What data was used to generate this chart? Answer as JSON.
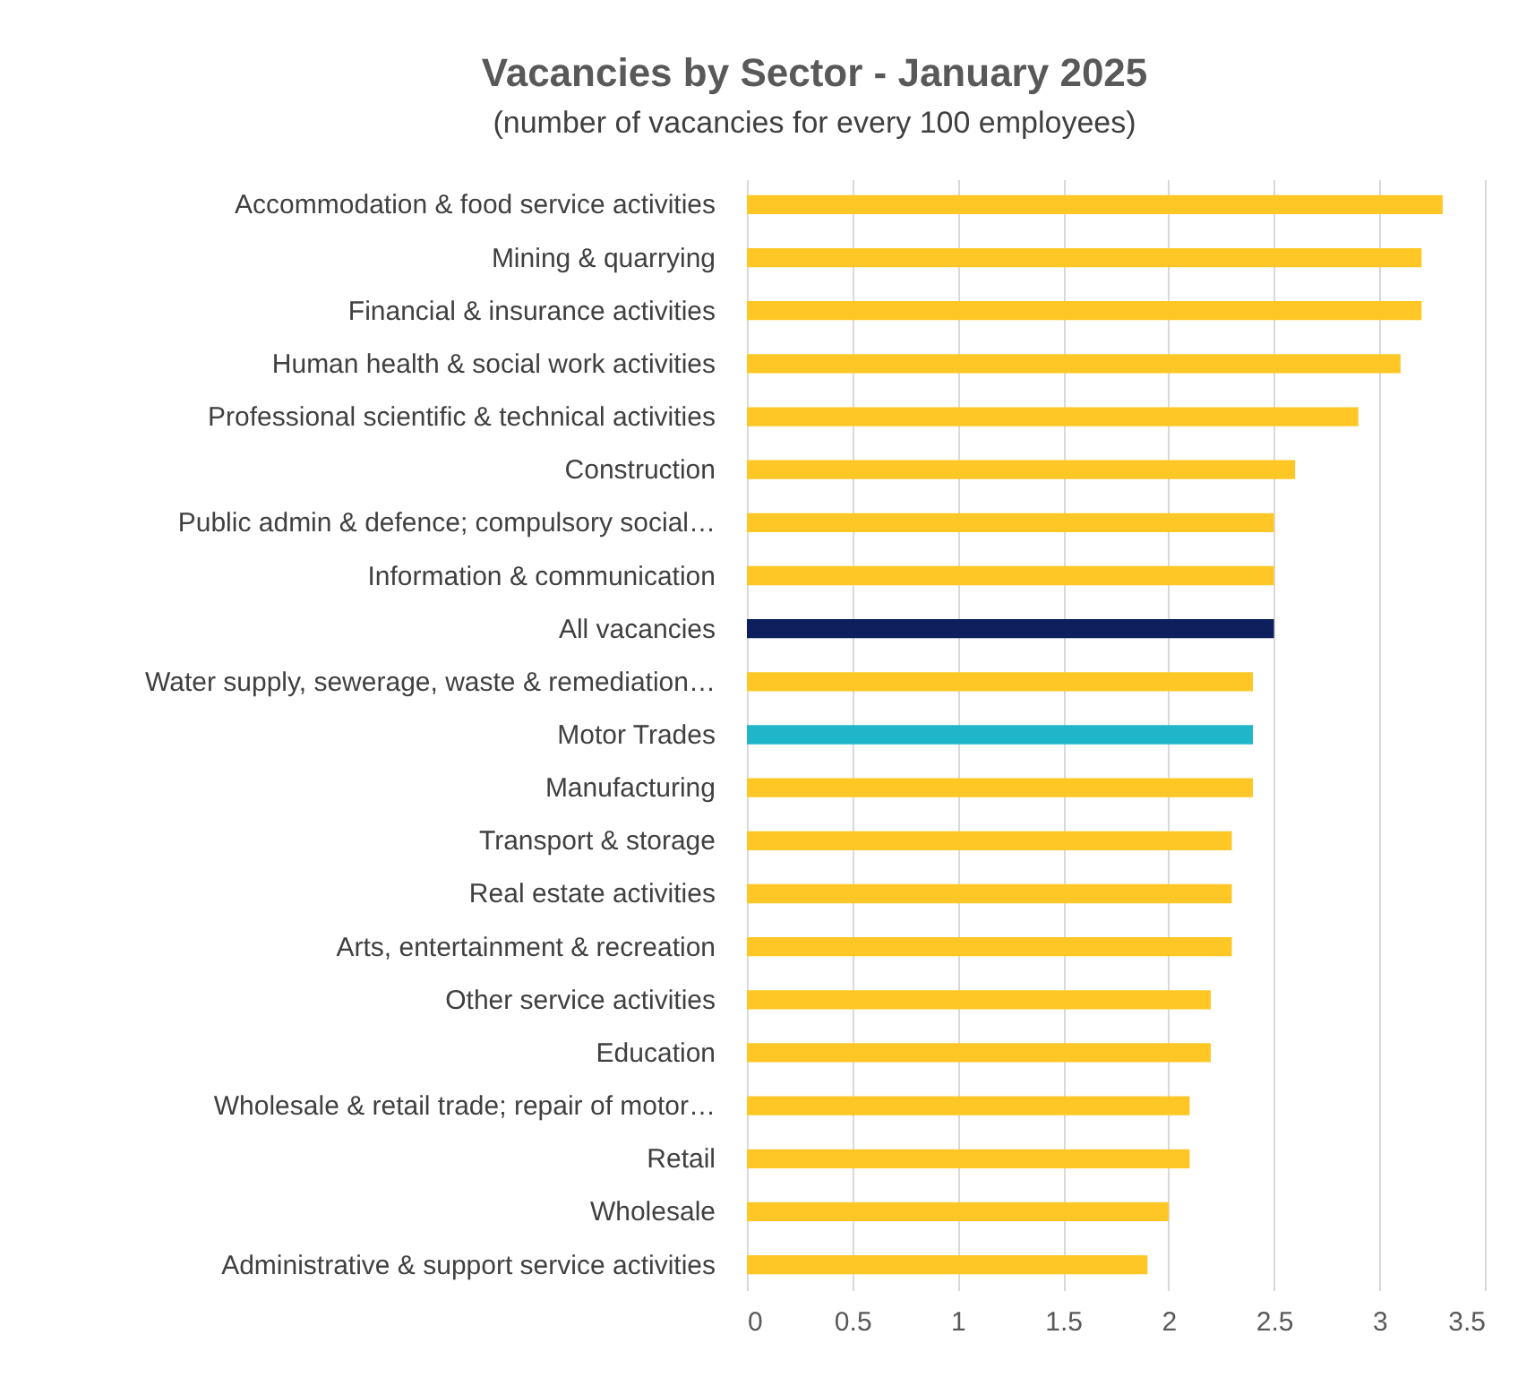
{
  "chart_data": {
    "type": "bar",
    "orientation": "horizontal",
    "title": "Vacancies by Sector  - January 2025",
    "subtitle": "(number of vacancies for every 100 employees)",
    "categories": [
      "Accommodation & food service activities",
      "Mining & quarrying",
      "Financial & insurance activities",
      "Human health & social work activities",
      "Professional scientific & technical activities",
      "Construction",
      "Public admin & defence; compulsory social…",
      "Information & communication",
      "All vacancies",
      "Water supply, sewerage, waste & remediation…",
      "Motor Trades",
      "Manufacturing",
      "Transport & storage",
      "Real estate activities",
      "Arts, entertainment & recreation",
      "Other service activities",
      "Education",
      "Wholesale & retail trade; repair of motor…",
      "Retail",
      "Wholesale",
      "Administrative & support service activities"
    ],
    "values": [
      3.3,
      3.2,
      3.2,
      3.1,
      2.9,
      2.6,
      2.5,
      2.5,
      2.5,
      2.4,
      2.4,
      2.4,
      2.3,
      2.3,
      2.3,
      2.2,
      2.2,
      2.1,
      2.1,
      2.0,
      1.9
    ],
    "colors": [
      "#ffc726",
      "#ffc726",
      "#ffc726",
      "#ffc726",
      "#ffc726",
      "#ffc726",
      "#ffc726",
      "#ffc726",
      "#0d1f5c",
      "#ffc726",
      "#1fb6c9",
      "#ffc726",
      "#ffc726",
      "#ffc726",
      "#ffc726",
      "#ffc726",
      "#ffc726",
      "#ffc726",
      "#ffc726",
      "#ffc726",
      "#ffc726"
    ],
    "xlim": [
      0,
      3.5
    ],
    "xticks": [
      0,
      0.5,
      1,
      1.5,
      2,
      2.5,
      3,
      3.5
    ],
    "grid": "x"
  }
}
